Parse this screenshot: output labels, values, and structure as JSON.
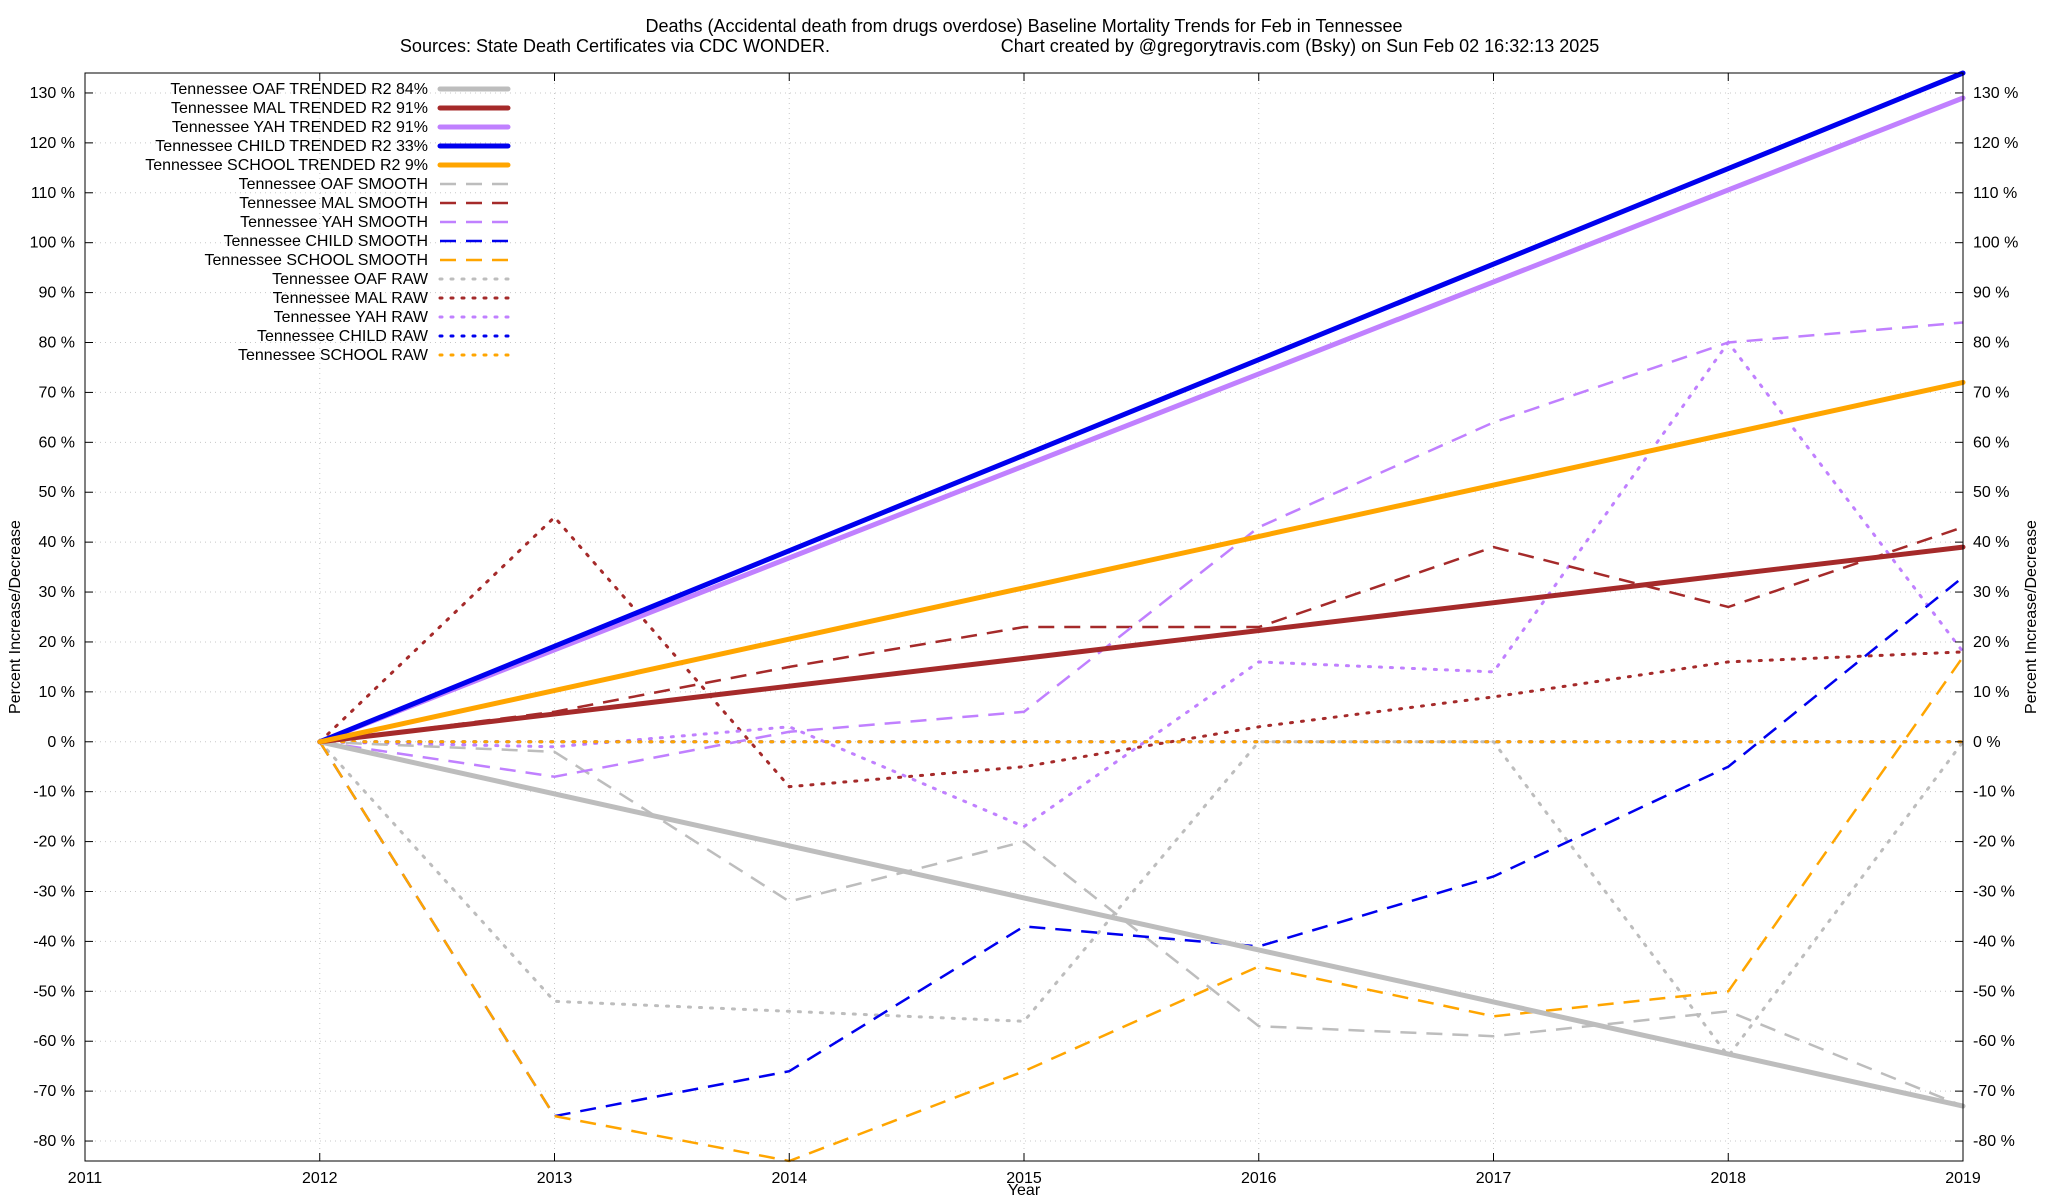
{
  "chart_data": {
    "type": "line",
    "title": "Deaths (Accidental death from drugs overdose)  Baseline Mortality Trends for Feb in Tennessee",
    "subtitle_left": "Sources: State Death Certificates via CDC WONDER.",
    "subtitle_right": "Chart created by @gregorytravis.com (Bsky) on Sun Feb 02 16:32:13 2025",
    "xlabel": "Year",
    "ylabel": "Percent Increase/Decrease",
    "xlim": [
      2011,
      2019
    ],
    "ylim": [
      -84,
      134
    ],
    "xticks": [
      2011,
      2012,
      2013,
      2014,
      2015,
      2016,
      2017,
      2018,
      2019
    ],
    "yticks": [
      -80,
      -70,
      -60,
      -50,
      -40,
      -30,
      -20,
      -10,
      0,
      10,
      20,
      30,
      40,
      50,
      60,
      70,
      80,
      90,
      100,
      110,
      120,
      130
    ],
    "ytick_suffix": " %",
    "grid": true,
    "legend_position": "top-left",
    "colors": {
      "oaf": "#bdbdbd",
      "mal": "#a52a2a",
      "yah": "#c080ff",
      "child": "#0000ee",
      "school": "#ffa500"
    },
    "series": [
      {
        "name": "Tennessee OAF TRENDED R2  84%",
        "group": "oaf",
        "style": "trend",
        "x": [
          2012,
          2019
        ],
        "y": [
          0,
          -73
        ]
      },
      {
        "name": "Tennessee MAL TRENDED R2  91%",
        "group": "mal",
        "style": "trend",
        "x": [
          2012,
          2019
        ],
        "y": [
          0,
          39
        ]
      },
      {
        "name": "Tennessee YAH TRENDED R2  91%",
        "group": "yah",
        "style": "trend",
        "x": [
          2012,
          2019
        ],
        "y": [
          0,
          129
        ]
      },
      {
        "name": "Tennessee CHILD TRENDED R2  33%",
        "group": "child",
        "style": "trend",
        "x": [
          2012,
          2019
        ],
        "y": [
          0,
          134
        ]
      },
      {
        "name": "Tennessee SCHOOL TRENDED R2  9%",
        "group": "school",
        "style": "trend",
        "x": [
          2012,
          2019
        ],
        "y": [
          0,
          72
        ]
      },
      {
        "name": "Tennessee OAF SMOOTH",
        "group": "oaf",
        "style": "smooth",
        "x": [
          2012,
          2013,
          2014,
          2015,
          2016,
          2017,
          2018,
          2019
        ],
        "y": [
          0,
          -2,
          -32,
          -20,
          -57,
          -59,
          -54,
          -73
        ]
      },
      {
        "name": "Tennessee MAL SMOOTH",
        "group": "mal",
        "style": "smooth",
        "x": [
          2012,
          2013,
          2014,
          2015,
          2016,
          2017,
          2018,
          2019
        ],
        "y": [
          0,
          6,
          15,
          23,
          23,
          39,
          27,
          43
        ]
      },
      {
        "name": "Tennessee YAH SMOOTH",
        "group": "yah",
        "style": "smooth",
        "x": [
          2012,
          2013,
          2014,
          2015,
          2016,
          2017,
          2018,
          2019
        ],
        "y": [
          0,
          -7,
          2,
          6,
          43,
          64,
          80,
          84
        ]
      },
      {
        "name": "Tennessee CHILD SMOOTH",
        "group": "child",
        "style": "smooth",
        "x": [
          2012,
          2013,
          2014,
          2015,
          2016,
          2017,
          2018,
          2019
        ],
        "y": [
          0,
          -75,
          -66,
          -37,
          -41,
          -27,
          -5,
          33
        ]
      },
      {
        "name": "Tennessee SCHOOL SMOOTH",
        "group": "school",
        "style": "smooth",
        "x": [
          2012,
          2013,
          2014,
          2015,
          2016,
          2017,
          2018,
          2019
        ],
        "y": [
          0,
          -75,
          -84,
          -66,
          -45,
          -55,
          -50,
          17
        ]
      },
      {
        "name": "Tennessee OAF RAW",
        "group": "oaf",
        "style": "raw",
        "x": [
          2012,
          2013,
          2014,
          2015,
          2016,
          2017,
          2018,
          2019
        ],
        "y": [
          0,
          -52,
          -54,
          -56,
          0,
          0,
          -63,
          0
        ]
      },
      {
        "name": "Tennessee MAL RAW",
        "group": "mal",
        "style": "raw",
        "x": [
          2012,
          2013,
          2014,
          2015,
          2016,
          2017,
          2018,
          2019
        ],
        "y": [
          0,
          45,
          -9,
          -5,
          3,
          9,
          16,
          18
        ]
      },
      {
        "name": "Tennessee YAH RAW",
        "group": "yah",
        "style": "raw",
        "x": [
          2012,
          2013,
          2014,
          2015,
          2016,
          2017,
          2018,
          2019
        ],
        "y": [
          0,
          -1,
          3,
          -17,
          16,
          14,
          80,
          18
        ]
      },
      {
        "name": "Tennessee CHILD RAW",
        "group": "child",
        "style": "raw",
        "x": [
          2012,
          2013,
          2014,
          2015,
          2016,
          2017,
          2018,
          2019
        ],
        "y": [
          0,
          0,
          0,
          0,
          0,
          0,
          0,
          0
        ]
      },
      {
        "name": "Tennessee SCHOOL RAW",
        "group": "school",
        "style": "raw",
        "x": [
          2012,
          2013,
          2014,
          2015,
          2016,
          2017,
          2018,
          2019
        ],
        "y": [
          0,
          0,
          0,
          0,
          0,
          0,
          0,
          0
        ]
      }
    ]
  }
}
